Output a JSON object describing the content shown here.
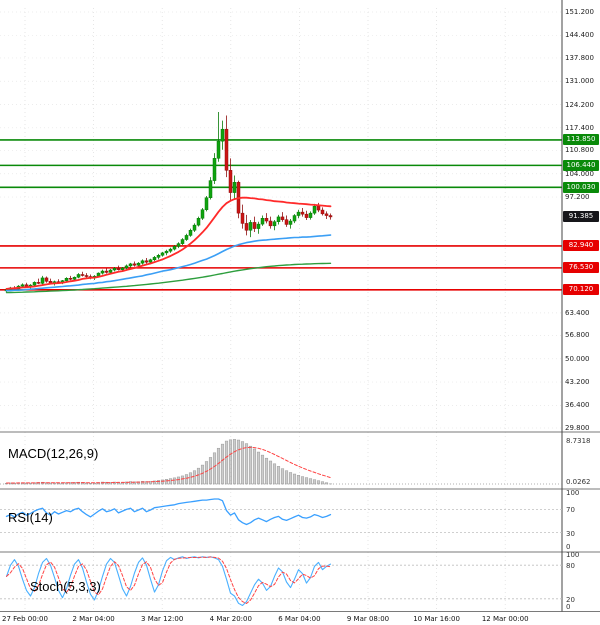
{
  "colors": {
    "background": "#ffffff",
    "grid": "#e6e6e6",
    "bull": "#0fa30f",
    "bull_stroke": "#067a06",
    "bear": "#cc1414",
    "bear_stroke": "#8f0d0d",
    "ma_fast": "#ff2a2a",
    "ma_mid": "#3b9ff5",
    "ma_slow": "#2e9e3e",
    "resistance": "#0a8a0a",
    "support": "#e60000",
    "price_chip": "#16161a",
    "macd_hist": "#9a9a9a",
    "macd_signal": "#ff4444",
    "rsi_line": "#3aa0ff",
    "stoch_k": "#4ab0ff",
    "stoch_d": "#ff4444",
    "separator": "#7a7a7a"
  },
  "chart_data": {
    "type": "candlestick",
    "title": "",
    "price_axis": {
      "min": 29.8,
      "max": 151.2,
      "ticks": [
        "151.200",
        "144.400",
        "137.800",
        "131.000",
        "124.200",
        "117.400",
        "110.800",
        "104.000",
        "97.200",
        "63.400",
        "56.800",
        "50.000",
        "43.200",
        "36.400",
        "29.800"
      ]
    },
    "time_axis": [
      "27 Feb 00:00",
      "2 Mar 04:00",
      "3 Mar 12:00",
      "4 Mar 20:00",
      "6 Mar 04:00",
      "9 Mar 08:00",
      "10 Mar 16:00",
      "12 Mar 00:00"
    ],
    "levels": {
      "resistance": [
        {
          "value": 113.85,
          "label": "113.850"
        },
        {
          "value": 106.44,
          "label": "106.440"
        },
        {
          "value": 100.03,
          "label": "100.030"
        }
      ],
      "support": [
        {
          "value": 82.94,
          "label": "82.940"
        },
        {
          "value": 76.53,
          "label": "76.530"
        },
        {
          "value": 70.12,
          "label": "70.120"
        }
      ],
      "current": {
        "value": 91.385,
        "label": "91.385"
      }
    },
    "candles": [
      [
        69.8,
        70.6,
        69.2,
        70.2
      ],
      [
        70.2,
        71.0,
        69.8,
        70.7
      ],
      [
        70.7,
        71.2,
        70.0,
        70.4
      ],
      [
        70.4,
        71.5,
        70.1,
        71.2
      ],
      [
        71.2,
        72.0,
        70.8,
        71.6
      ],
      [
        71.6,
        72.2,
        70.9,
        71.1
      ],
      [
        71.1,
        71.8,
        70.5,
        71.5
      ],
      [
        71.5,
        72.6,
        71.2,
        72.3
      ],
      [
        72.3,
        73.4,
        71.8,
        72.0
      ],
      [
        72.0,
        74.2,
        71.6,
        73.6
      ],
      [
        73.6,
        74.0,
        72.2,
        72.6
      ],
      [
        72.6,
        73.4,
        71.8,
        72.1
      ],
      [
        72.1,
        72.8,
        71.4,
        72.5
      ],
      [
        72.5,
        73.2,
        71.9,
        72.2
      ],
      [
        72.2,
        73.0,
        71.8,
        72.8
      ],
      [
        72.8,
        73.8,
        72.5,
        73.5
      ],
      [
        73.5,
        74.2,
        72.9,
        73.2
      ],
      [
        73.2,
        74.0,
        72.8,
        73.8
      ],
      [
        73.8,
        75.0,
        73.5,
        74.6
      ],
      [
        74.6,
        75.4,
        74.0,
        74.3
      ],
      [
        74.3,
        75.0,
        73.6,
        74.0
      ],
      [
        74.0,
        74.6,
        73.2,
        73.6
      ],
      [
        73.6,
        74.4,
        73.0,
        74.1
      ],
      [
        74.1,
        75.2,
        73.8,
        75.0
      ],
      [
        75.0,
        76.0,
        74.6,
        75.6
      ],
      [
        75.6,
        76.4,
        74.9,
        75.2
      ],
      [
        75.2,
        76.2,
        74.8,
        75.9
      ],
      [
        75.9,
        76.8,
        75.5,
        76.4
      ],
      [
        76.4,
        77.2,
        75.8,
        76.0
      ],
      [
        76.0,
        76.8,
        75.4,
        76.5
      ],
      [
        76.5,
        77.5,
        76.1,
        77.1
      ],
      [
        77.1,
        78.0,
        76.6,
        77.7
      ],
      [
        77.7,
        78.4,
        76.9,
        77.3
      ],
      [
        77.3,
        78.2,
        76.8,
        77.9
      ],
      [
        77.9,
        79.0,
        77.5,
        78.6
      ],
      [
        78.6,
        79.4,
        77.8,
        78.2
      ],
      [
        78.2,
        79.2,
        77.6,
        78.9
      ],
      [
        78.9,
        80.0,
        78.5,
        79.6
      ],
      [
        79.6,
        80.6,
        79.0,
        80.2
      ],
      [
        80.2,
        81.2,
        79.8,
        80.9
      ],
      [
        80.9,
        81.8,
        80.2,
        81.4
      ],
      [
        81.4,
        82.4,
        80.9,
        82.0
      ],
      [
        82.0,
        83.2,
        81.6,
        82.8
      ],
      [
        82.8,
        84.0,
        82.3,
        83.6
      ],
      [
        83.6,
        85.2,
        83.2,
        84.8
      ],
      [
        84.8,
        86.5,
        84.4,
        86.0
      ],
      [
        86.0,
        88.0,
        85.6,
        87.5
      ],
      [
        87.5,
        89.5,
        87.0,
        89.0
      ],
      [
        89.0,
        91.5,
        88.6,
        91.0
      ],
      [
        91.0,
        94.0,
        90.5,
        93.5
      ],
      [
        93.5,
        97.5,
        93.0,
        97.0
      ],
      [
        97.0,
        103.0,
        96.5,
        102.0
      ],
      [
        102.0,
        110.0,
        101.0,
        108.5
      ],
      [
        108.5,
        122.0,
        107.5,
        113.5
      ],
      [
        113.5,
        119.5,
        111.0,
        117.0
      ],
      [
        117.0,
        121.0,
        103.0,
        105.0
      ],
      [
        105.0,
        108.5,
        96.0,
        98.5
      ],
      [
        98.5,
        103.5,
        96.5,
        101.5
      ],
      [
        101.5,
        102.0,
        91.0,
        92.5
      ],
      [
        92.5,
        95.0,
        88.0,
        89.5
      ],
      [
        89.5,
        92.0,
        86.0,
        87.5
      ],
      [
        87.5,
        90.5,
        85.5,
        89.8
      ],
      [
        89.8,
        91.5,
        87.0,
        88.0
      ],
      [
        88.0,
        90.0,
        86.5,
        89.3
      ],
      [
        89.3,
        91.8,
        88.8,
        91.0
      ],
      [
        91.0,
        92.5,
        89.5,
        90.2
      ],
      [
        90.2,
        91.5,
        88.0,
        88.8
      ],
      [
        88.8,
        90.5,
        87.5,
        90.0
      ],
      [
        90.0,
        92.0,
        89.2,
        91.4
      ],
      [
        91.4,
        92.8,
        90.0,
        90.6
      ],
      [
        90.6,
        91.8,
        88.5,
        89.2
      ],
      [
        89.2,
        90.8,
        88.0,
        90.2
      ],
      [
        90.2,
        92.2,
        89.6,
        91.8
      ],
      [
        91.8,
        93.5,
        91.0,
        92.8
      ],
      [
        92.8,
        94.0,
        91.5,
        92.2
      ],
      [
        92.2,
        93.2,
        90.5,
        91.2
      ],
      [
        91.2,
        93.0,
        90.6,
        92.5
      ],
      [
        92.5,
        95.2,
        92.0,
        94.5
      ],
      [
        94.5,
        95.5,
        92.8,
        93.4
      ],
      [
        93.4,
        94.2,
        91.8,
        92.3
      ],
      [
        92.3,
        93.0,
        90.8,
        91.8
      ],
      [
        91.8,
        92.4,
        90.6,
        91.4
      ]
    ],
    "ma": {
      "fast": [
        70.4,
        70.5,
        70.6,
        70.7,
        70.8,
        70.9,
        71.0,
        71.1,
        71.3,
        71.5,
        71.7,
        71.9,
        72.0,
        72.1,
        72.2,
        72.4,
        72.6,
        72.8,
        73.0,
        73.3,
        73.5,
        73.6,
        73.7,
        73.9,
        74.2,
        74.5,
        74.8,
        75.1,
        75.4,
        75.6,
        75.9,
        76.2,
        76.5,
        76.8,
        77.2,
        77.5,
        77.8,
        78.2,
        78.6,
        79.0,
        79.5,
        80.0,
        80.6,
        81.2,
        81.9,
        82.7,
        83.6,
        84.6,
        85.7,
        86.9,
        88.2,
        89.7,
        91.3,
        92.9,
        94.3,
        95.4,
        96.1,
        96.6,
        96.9,
        97.0,
        97.0,
        96.9,
        96.8,
        96.6,
        96.5,
        96.3,
        96.2,
        96.0,
        95.9,
        95.8,
        95.6,
        95.5,
        95.4,
        95.3,
        95.2,
        95.1,
        95.0,
        94.9,
        94.8,
        94.7,
        94.6,
        94.5
      ],
      "mid": [
        69.9,
        69.9,
        70.0,
        70.0,
        70.1,
        70.2,
        70.3,
        70.4,
        70.5,
        70.6,
        70.7,
        70.8,
        70.9,
        71.0,
        71.1,
        71.2,
        71.3,
        71.4,
        71.5,
        71.7,
        71.8,
        71.9,
        72.0,
        72.2,
        72.3,
        72.5,
        72.6,
        72.8,
        73.0,
        73.2,
        73.4,
        73.6,
        73.8,
        74.0,
        74.2,
        74.5,
        74.7,
        75.0,
        75.3,
        75.6,
        75.8,
        76.0,
        76.3,
        76.6,
        76.9,
        77.2,
        77.5,
        77.9,
        78.3,
        78.7,
        79.1,
        79.6,
        80.1,
        80.7,
        81.3,
        81.9,
        82.4,
        82.9,
        83.3,
        83.6,
        83.9,
        84.1,
        84.3,
        84.5,
        84.6,
        84.7,
        84.8,
        84.9,
        85.0,
        85.1,
        85.2,
        85.3,
        85.4,
        85.4,
        85.5,
        85.5,
        85.6,
        85.7,
        85.8,
        85.9,
        86.0,
        86.1
      ],
      "slow": [
        69.3,
        69.33,
        69.36,
        69.4,
        69.44,
        69.48,
        69.52,
        69.56,
        69.6,
        69.65,
        69.7,
        69.75,
        69.8,
        69.85,
        69.9,
        69.96,
        70.02,
        70.08,
        70.15,
        70.22,
        70.3,
        70.38,
        70.46,
        70.54,
        70.62,
        70.7,
        70.79,
        70.88,
        70.97,
        71.06,
        71.16,
        71.26,
        71.36,
        71.47,
        71.58,
        71.7,
        71.82,
        71.94,
        72.07,
        72.2,
        72.34,
        72.48,
        72.63,
        72.78,
        72.94,
        73.1,
        73.27,
        73.45,
        73.63,
        73.82,
        74.02,
        74.23,
        74.45,
        74.68,
        74.9,
        75.12,
        75.34,
        75.55,
        75.75,
        75.94,
        76.12,
        76.28,
        76.44,
        76.59,
        76.73,
        76.86,
        76.98,
        77.09,
        77.19,
        77.28,
        77.36,
        77.43,
        77.5,
        77.56,
        77.61,
        77.66,
        77.7,
        77.74,
        77.77,
        77.8,
        77.83,
        77.86
      ]
    },
    "macd": {
      "label": "MACD(12,26,9)",
      "value_top": "8.7318",
      "value_bottom": "0.0262",
      "ymax": 9.0,
      "hist": [
        0.15,
        0.2,
        0.18,
        0.22,
        0.25,
        0.2,
        0.18,
        0.25,
        0.3,
        0.35,
        0.25,
        0.2,
        0.22,
        0.18,
        0.2,
        0.25,
        0.28,
        0.3,
        0.35,
        0.3,
        0.22,
        0.15,
        0.18,
        0.28,
        0.38,
        0.35,
        0.3,
        0.38,
        0.35,
        0.32,
        0.4,
        0.48,
        0.42,
        0.45,
        0.52,
        0.48,
        0.5,
        0.6,
        0.7,
        0.8,
        0.92,
        1.05,
        1.2,
        1.38,
        1.58,
        1.85,
        2.2,
        2.6,
        3.1,
        3.7,
        4.4,
        5.2,
        6.1,
        7.0,
        7.8,
        8.4,
        8.65,
        8.73,
        8.6,
        8.3,
        7.9,
        7.4,
        6.85,
        6.25,
        5.65,
        5.05,
        4.5,
        3.95,
        3.45,
        3.0,
        2.6,
        2.25,
        1.95,
        1.7,
        1.45,
        1.25,
        1.05,
        0.85,
        0.65,
        0.45,
        0.25,
        0.03
      ],
      "signal": [
        0.2,
        0.2,
        0.2,
        0.21,
        0.22,
        0.21,
        0.21,
        0.22,
        0.23,
        0.25,
        0.25,
        0.24,
        0.24,
        0.23,
        0.23,
        0.23,
        0.24,
        0.25,
        0.26,
        0.27,
        0.26,
        0.25,
        0.24,
        0.24,
        0.26,
        0.28,
        0.28,
        0.3,
        0.31,
        0.31,
        0.32,
        0.35,
        0.36,
        0.38,
        0.4,
        0.42,
        0.43,
        0.46,
        0.5,
        0.55,
        0.61,
        0.68,
        0.77,
        0.87,
        0.99,
        1.13,
        1.31,
        1.52,
        1.78,
        2.1,
        2.48,
        2.93,
        3.45,
        4.04,
        4.66,
        5.28,
        5.84,
        6.32,
        6.7,
        6.97,
        7.12,
        7.17,
        7.12,
        6.98,
        6.76,
        6.48,
        6.15,
        5.78,
        5.39,
        5.0,
        4.6,
        4.21,
        3.84,
        3.49,
        3.15,
        2.84,
        2.54,
        2.26,
        2.0,
        1.74,
        1.5,
        1.26
      ]
    },
    "rsi": {
      "label": "RSI(14)",
      "ticks": [
        "100",
        "70",
        "30",
        "0"
      ],
      "guides": [
        70,
        30
      ],
      "values": [
        58,
        61,
        57,
        62,
        65,
        60,
        63,
        67,
        70,
        72,
        64,
        60,
        66,
        62,
        65,
        68,
        66,
        70,
        72,
        66,
        61,
        57,
        62,
        67,
        71,
        66,
        68,
        71,
        64,
        67,
        70,
        72,
        66,
        69,
        72,
        66,
        69,
        73,
        74,
        75,
        76,
        77,
        78,
        80,
        81,
        82,
        83,
        84,
        85,
        86,
        86,
        87,
        88,
        88,
        85,
        68,
        60,
        64,
        52,
        47,
        44,
        47,
        52,
        55,
        52,
        49,
        53,
        56,
        58,
        53,
        51,
        54,
        57,
        60,
        56,
        55,
        57,
        61,
        59,
        56,
        58,
        61
      ]
    },
    "stoch": {
      "label": "Stoch(5,3,3)",
      "ticks": [
        "100",
        "80",
        "20",
        "0"
      ],
      "guides": [
        80,
        20
      ],
      "d_smoothing": 3,
      "k": [
        60,
        80,
        90,
        78,
        55,
        35,
        25,
        40,
        65,
        85,
        92,
        80,
        58,
        35,
        22,
        38,
        62,
        82,
        90,
        75,
        50,
        28,
        18,
        35,
        60,
        82,
        92,
        85,
        62,
        38,
        25,
        42,
        66,
        85,
        93,
        80,
        55,
        32,
        45,
        70,
        88,
        94,
        90,
        93,
        95,
        92,
        94,
        95,
        93,
        95,
        94,
        95,
        93,
        90,
        78,
        55,
        30,
        25,
        12,
        8,
        15,
        30,
        45,
        55,
        48,
        35,
        42,
        60,
        75,
        68,
        50,
        40,
        55,
        72,
        65,
        48,
        58,
        78,
        85,
        72,
        78,
        82
      ]
    }
  }
}
